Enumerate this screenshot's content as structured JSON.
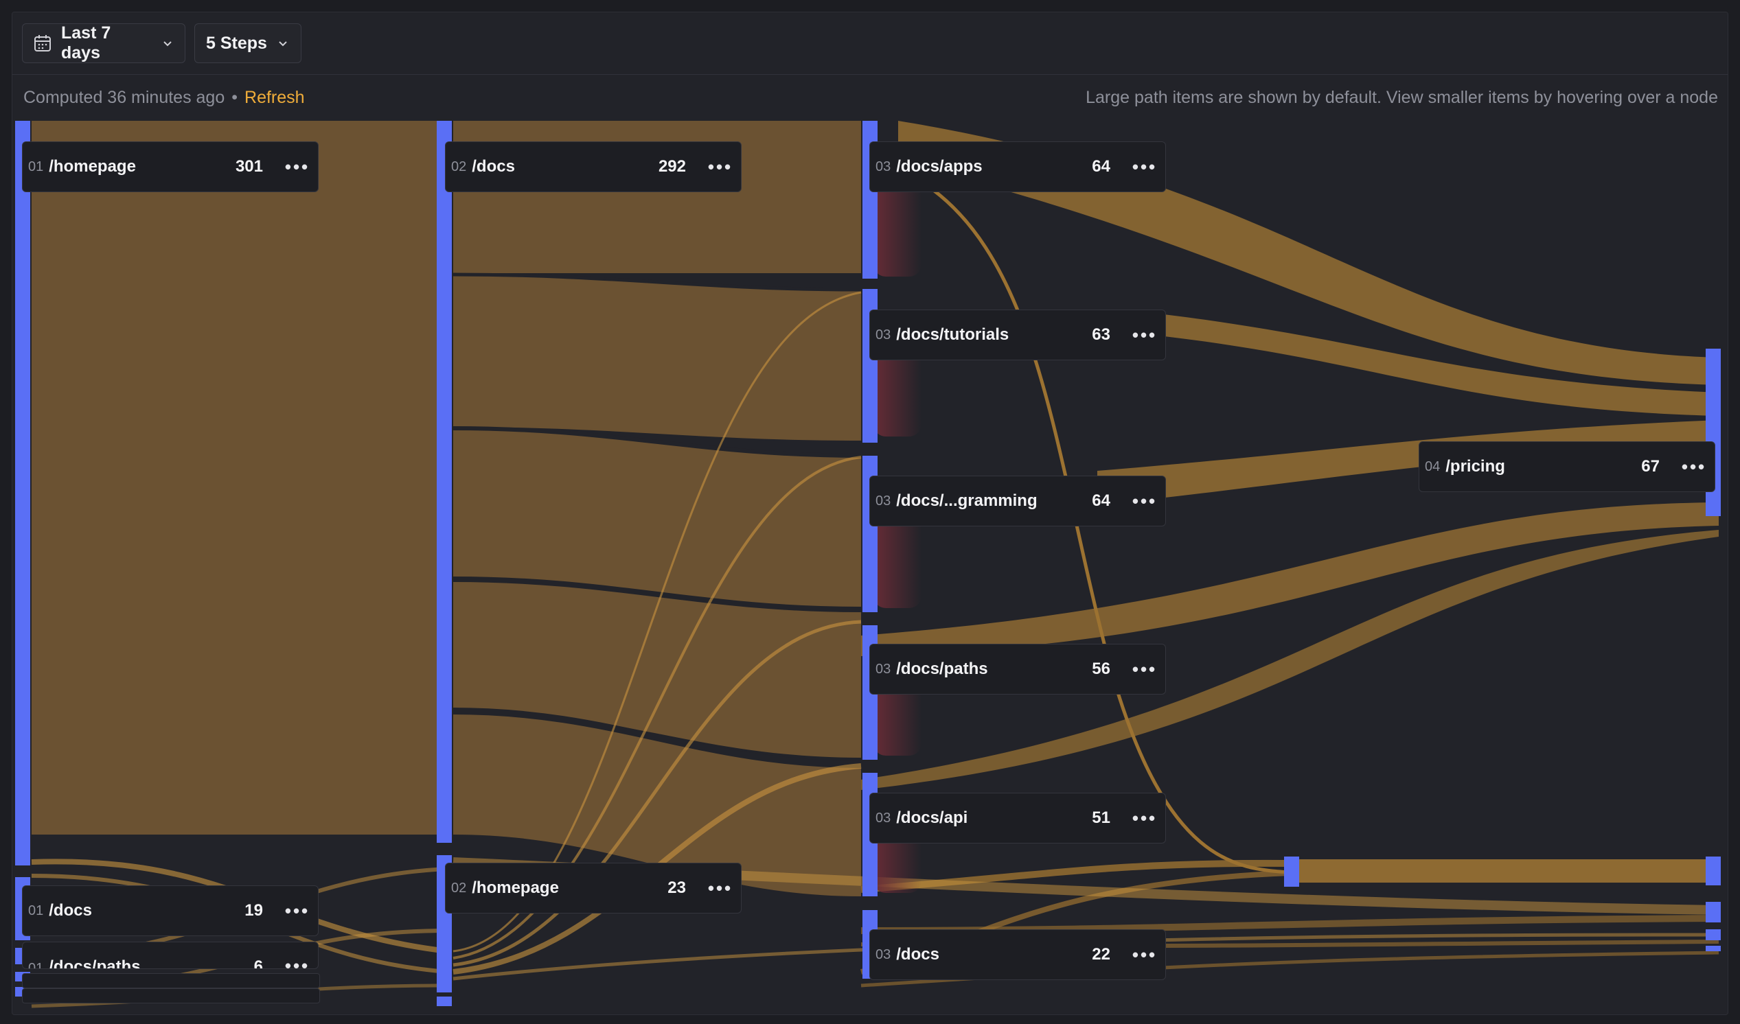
{
  "toolbar": {
    "date_range": "Last 7 days",
    "steps": "5 Steps",
    "calendar_icon": "calendar-icon",
    "chevron_icon": "chevron-down-icon"
  },
  "info": {
    "computed": "Computed 36 minutes ago",
    "separator": "•",
    "refresh": "Refresh",
    "hint": "Large path items are shown by default. View smaller items by hovering over a node"
  },
  "colors": {
    "bar": "#5a6ff5",
    "link": "#9c7231",
    "link_light": "#c9953f",
    "drop": "#6b2c37",
    "background": "#222329"
  },
  "nodes": [
    {
      "step": "01",
      "name": "/homepage",
      "count": "301"
    },
    {
      "step": "01",
      "name": "/docs",
      "count": "19"
    },
    {
      "step": "01",
      "name": "/docs/paths",
      "count": "6"
    },
    {
      "step": "02",
      "name": "/docs",
      "count": "292"
    },
    {
      "step": "02",
      "name": "/homepage",
      "count": "23"
    },
    {
      "step": "03",
      "name": "/docs/apps",
      "count": "64"
    },
    {
      "step": "03",
      "name": "/docs/tutorials",
      "count": "63"
    },
    {
      "step": "03",
      "name": "/docs/...gramming",
      "count": "64"
    },
    {
      "step": "03",
      "name": "/docs/paths",
      "count": "56"
    },
    {
      "step": "03",
      "name": "/docs/api",
      "count": "51"
    },
    {
      "step": "03",
      "name": "/docs",
      "count": "22"
    },
    {
      "step": "04",
      "name": "/pricing",
      "count": "67"
    }
  ],
  "more_label": "•••"
}
